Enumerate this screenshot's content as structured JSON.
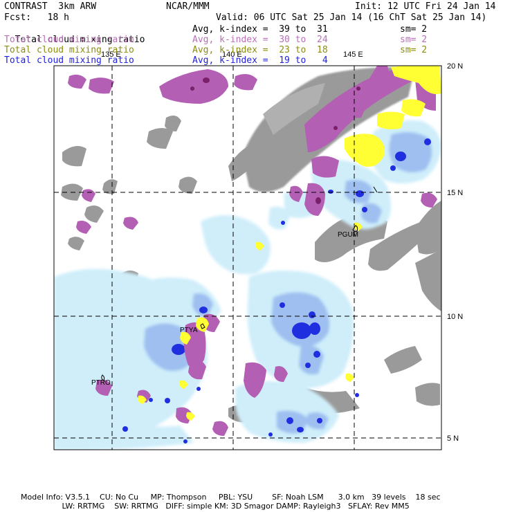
{
  "header": {
    "title": "CONTRAST  3km ARW",
    "center": "NCAR/MMM",
    "init": "Init: 12 UTC Fri 24 Jan 14",
    "fcst": "Fcst:   18 h",
    "valid": "Valid: 06 UTC Sat 25 Jan 14 (16 ChT Sat 25 Jan 14)"
  },
  "legend": [
    {
      "label": "Total cloud mixing ratio",
      "range": "Avg, k-index =  39 to  31",
      "sm": "sm= 2",
      "color": "#000000"
    },
    {
      "label": "Total cloud mixing ratio",
      "range": "Avg, k-index =  30 to  24",
      "sm": "sm= 2",
      "color": "#b86fb8"
    },
    {
      "label": "Total cloud mixing ratio",
      "range": "Avg, k-index =  23 to  18",
      "sm": "sm= 2",
      "color": "#8c8c10"
    },
    {
      "label": "Total cloud mixing ratio",
      "range": "Avg, k-index =  19 to   4",
      "sm": "",
      "color": "#2020e0"
    }
  ],
  "map": {
    "lon_labels": [
      "135 E",
      "140 E",
      "145 E"
    ],
    "lat_labels": [
      "20 N",
      "15 N",
      "10 N",
      "5 N"
    ],
    "stations": [
      "PGUM",
      "PTYA",
      "PTRO"
    ],
    "colors": {
      "grey_cloud": "#9a9a9a",
      "purple_cloud": "#b35fb3",
      "dark_purple": "#7a1f6a",
      "yellow_cloud": "#ffff33",
      "light_blue": "#cfeefa",
      "mid_blue": "#9ebff0",
      "deep_blue": "#1f2fe0"
    }
  },
  "footer": {
    "line1": "Model Info: V3.5.1    CU: No Cu     MP: Thompson     PBL: YSU        SF: Noah LSM      3.0 km   39 levels    18 sec",
    "line2": "                 LW: RRTMG    SW: RRTMG   DIFF: simple KM: 3D Smagor DAMP: Rayleigh3   SFLAY: Rev MM5"
  }
}
